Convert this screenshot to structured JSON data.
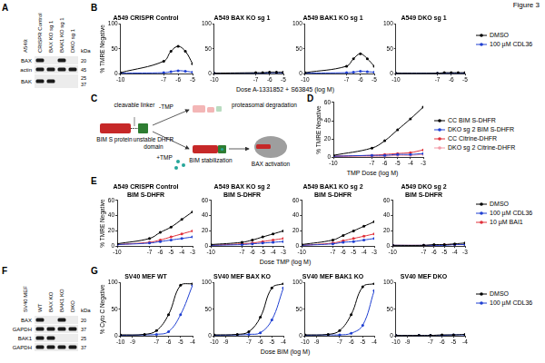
{
  "figure_title": "Figure 3",
  "panels": {
    "A": {
      "letter": "A",
      "cell_line": "A549:",
      "kda_label": "kDa",
      "lanes": [
        "CRISPR Control",
        "BAX KO sg 1",
        "BAK1 KO sg 1",
        "DKO sg 1"
      ],
      "rows": [
        {
          "label": "BAX",
          "markers": [
            20
          ],
          "bands": [
            1,
            0,
            1,
            0
          ]
        },
        {
          "label": "actin",
          "markers": [
            45
          ],
          "bands": [
            1,
            1,
            1,
            1
          ]
        },
        {
          "label": "BAK",
          "markers": [
            25,
            37
          ],
          "bands": [
            1,
            1,
            0,
            0
          ]
        }
      ]
    },
    "C": {
      "letter": "C",
      "texts": {
        "protein": "BIM S protein",
        "linker": "cleavable linker",
        "domain": "unstable DHFR domain",
        "minus": "-TMP",
        "plus": "+TMP",
        "degradation": "proteasomal degradation",
        "stabilization": "BIM stabilization",
        "activation": "BAX activation"
      }
    },
    "F": {
      "letter": "F",
      "cell_line": "SV40 MEF",
      "kda_label": "kDa",
      "lanes": [
        "WT",
        "BAX KO",
        "BAK1 KO",
        "DKO"
      ],
      "rows": [
        {
          "label": "BAX",
          "markers": [
            20
          ],
          "bands": [
            1,
            0,
            1,
            0
          ]
        },
        {
          "label": "GAPDH",
          "markers": [
            37
          ],
          "bands": [
            1,
            1,
            1,
            1
          ]
        },
        {
          "label": "BAK1",
          "markers": [
            25
          ],
          "bands": [
            1,
            1,
            0,
            0
          ]
        },
        {
          "label": "GAPDH",
          "markers": [
            37
          ],
          "bands": [
            1,
            1,
            1,
            1
          ]
        }
      ]
    }
  },
  "chart_data": [
    {
      "panel": "B",
      "type": "line",
      "grid": false,
      "legend": "right",
      "titles": [
        "A549 CRISPR Control",
        "A549 BAX KO sg 1",
        "A549 BAK1 KO sg 1",
        "A549 DKO sg 1"
      ],
      "x_label": "Dose A-1331852 + S63845 (log M)",
      "y_label": "% TMRE Negative",
      "x": [
        -10,
        -7,
        -6.5,
        -6,
        -5.5,
        -5
      ],
      "xlim": [
        -10,
        -5
      ],
      "xticks": [
        -10,
        -7,
        -6,
        -5
      ],
      "ylim": [
        0,
        100
      ],
      "yticks": [
        0,
        50,
        100
      ],
      "series": [
        {
          "name": "DMSO",
          "color": "#000000",
          "values": [
            [
              2,
              25,
              45,
              55,
              45,
              20
            ],
            [
              1,
              2,
              2,
              3,
              3,
              3
            ],
            [
              2,
              15,
              30,
              40,
              30,
              15
            ],
            [
              1,
              1,
              2,
              2,
              2,
              2
            ]
          ]
        },
        {
          "name": "100 µM CDL36",
          "color": "#1f3fd1",
          "values": [
            [
              1,
              2,
              4,
              6,
              5,
              3
            ],
            [
              1,
              1,
              1,
              2,
              2,
              2
            ],
            [
              1,
              2,
              3,
              5,
              4,
              3
            ],
            [
              1,
              1,
              1,
              1,
              1,
              1
            ]
          ]
        }
      ]
    },
    {
      "panel": "D",
      "type": "line",
      "grid": false,
      "legend": "right",
      "titles": [
        ""
      ],
      "x_label": "TMP Dose (log M)",
      "y_label": "% TMRE Negative",
      "x": [
        -10,
        -7,
        -6,
        -5,
        -4,
        -3
      ],
      "xlim": [
        -10,
        -3
      ],
      "xticks": [
        -10,
        -7,
        -6,
        -5,
        -4,
        -3
      ],
      "ylim": [
        0,
        60
      ],
      "yticks": [
        0,
        20,
        40,
        60
      ],
      "series": [
        {
          "name": "CC BIM S-DHFR",
          "color": "#000000",
          "values": [
            [
              2,
              10,
              18,
              30,
              42,
              55
            ]
          ]
        },
        {
          "name": "DKO sg 2 BIM S-DHFR",
          "color": "#1f3fd1",
          "values": [
            [
              1,
              2,
              2,
              3,
              3,
              4
            ]
          ]
        },
        {
          "name": "CC Citrine-DHFR",
          "color": "#e0303a",
          "values": [
            [
              1,
              2,
              3,
              4,
              5,
              8
            ]
          ]
        },
        {
          "name": "DKO sg 2 Citrine-DHFR",
          "color": "#f29aa6",
          "values": [
            [
              1,
              1,
              1,
              2,
              2,
              3
            ]
          ]
        }
      ]
    },
    {
      "panel": "E",
      "type": "line",
      "grid": false,
      "legend": "right",
      "titles": [
        [
          "A549 CRISPR Control",
          "BIM S-DHFR"
        ],
        [
          "A549 BAX KO sg 2",
          "BIM S-DHFR"
        ],
        [
          "A549 BAK1 KO sg 2",
          "BIM S-DHFR"
        ],
        [
          "A549 DKO sg 2",
          "BIM S-DHFR"
        ]
      ],
      "x_label": "Dose TMP (log M)",
      "y_label": "% TMRE Negative",
      "x": [
        -10,
        -7,
        -6,
        -5,
        -4,
        -3
      ],
      "xlim": [
        -10,
        -3
      ],
      "xticks": [
        -10,
        -7,
        -6,
        -5,
        -4,
        -3
      ],
      "ylim": [
        0,
        60
      ],
      "yticks": [
        0,
        20,
        40,
        60
      ],
      "series": [
        {
          "name": "DMSO",
          "color": "#000000",
          "values": [
            [
              3,
              10,
              18,
              25,
              35,
              45
            ],
            [
              2,
              5,
              8,
              12,
              16,
              20
            ],
            [
              2,
              8,
              14,
              20,
              26,
              32
            ],
            [
              1,
              1,
              2,
              2,
              3,
              4
            ]
          ]
        },
        {
          "name": "100 µM CDL36",
          "color": "#1f3fd1",
          "values": [
            [
              2,
              4,
              6,
              8,
              10,
              12
            ],
            [
              1,
              2,
              3,
              4,
              5,
              6
            ],
            [
              1,
              3,
              5,
              6,
              8,
              10
            ],
            [
              1,
              1,
              1,
              1,
              2,
              2
            ]
          ]
        },
        {
          "name": "10 µM BAI1",
          "color": "#e0303a",
          "values": [
            [
              2,
              5,
              8,
              12,
              16,
              20
            ],
            [
              1,
              3,
              4,
              6,
              8,
              10
            ],
            [
              1,
              4,
              7,
              10,
              13,
              16
            ],
            [
              1,
              1,
              1,
              2,
              2,
              2
            ]
          ]
        }
      ]
    },
    {
      "panel": "G",
      "type": "line",
      "grid": false,
      "legend": "right",
      "titles": [
        "SV40 MEF WT",
        "SV40 MEF BAX KO",
        "SV40 MEF BAK1 KO",
        "SV40 MEF DKO"
      ],
      "x_label": "Dose BIM (log M)",
      "y_label": "% Cyto C Negative",
      "x": [
        -10,
        -8,
        -7,
        -6,
        -5,
        -4
      ],
      "xlim": [
        -10,
        -4
      ],
      "xticks": [
        -10,
        -9,
        -7,
        -6,
        -5,
        -4
      ],
      "ylim": [
        0,
        100
      ],
      "yticks": [
        0,
        50,
        100
      ],
      "series": [
        {
          "name": "DMSO",
          "color": "#000000",
          "values": [
            [
              2,
              3,
              10,
              40,
              95,
              98
            ],
            [
              2,
              3,
              8,
              35,
              90,
              98
            ],
            [
              2,
              3,
              10,
              40,
              92,
              98
            ],
            [
              1,
              1,
              1,
              2,
              2,
              3
            ]
          ]
        },
        {
          "name": "100 µM CDL36",
          "color": "#1f3fd1",
          "values": [
            [
              1,
              2,
              3,
              8,
              40,
              95
            ],
            [
              1,
              2,
              3,
              6,
              30,
              90
            ],
            [
              1,
              2,
              2,
              5,
              20,
              85
            ],
            [
              1,
              1,
              1,
              1,
              2,
              2
            ]
          ]
        }
      ]
    }
  ]
}
